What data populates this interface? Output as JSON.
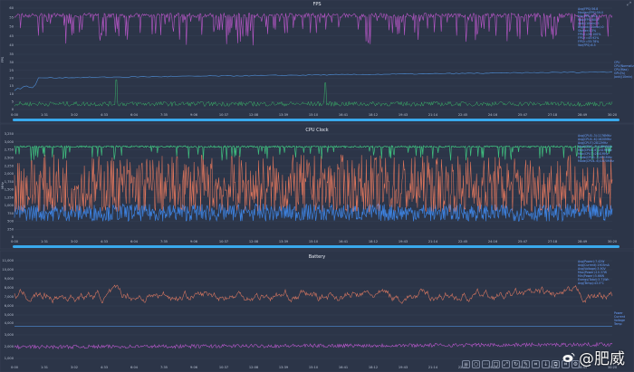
{
  "colors": {
    "background": "#2b3446",
    "scrollbar": "#39a9ec",
    "fps": "#b957c9",
    "cpu_load_green": "#3ab56a",
    "blue_line": "#4f8fd8",
    "cpu_green": "#3fbf7f",
    "cpu_orange": "#e0765c",
    "cpu_blue": "#3d82e0",
    "battery_orange": "#e07a62",
    "battery_purple": "#c45ad6",
    "legend_text": "#6aa2ff"
  },
  "time_ticks": [
    "0:00",
    "1:31",
    "3:02",
    "4:33",
    "6:04",
    "7:35",
    "9:06",
    "10:37",
    "12:08",
    "13:39",
    "15:10",
    "16:41",
    "18:12",
    "19:43",
    "21:14",
    "22:45",
    "24:16",
    "25:47",
    "27:18",
    "28:49",
    "30:20"
  ],
  "toolbar_icons": [
    "menu-icon",
    "circle-icon",
    "dots-icon",
    "square-icon",
    "expand-icon",
    "rotate-icon",
    "pencil-icon",
    "crop-icon",
    "download-icon",
    "copy-icon",
    "crop-icon",
    "settings-icon"
  ],
  "watermark": "@肥威",
  "chart_data": [
    {
      "type": "line",
      "title": "FPS",
      "ylabel": "FPS",
      "upper": {
        "yticks": [
          "60",
          "55",
          "50",
          "45",
          "40",
          "35"
        ],
        "ylim": [
          30,
          62
        ],
        "series": [
          {
            "color": "#b957c9",
            "values_description": "≈ 57 with frequent dips to 40–45"
          }
        ],
        "legend": [
          "Avg(FPS):56.8",
          "Median(FPS):59.0",
          "Min(FPS):33.0",
          "Max(FPS):60.0",
          "Jank(/10min):3",
          "BigJank(/10min):0",
          "Stutter:0.3%",
          "FPS>=30:100%",
          "FPS>=45:92%",
          "FPS>=55:78%",
          "Var(FPS):6.5"
        ]
      },
      "lower": {
        "yticks": [
          "30",
          "25",
          "20",
          "15",
          "10",
          "5",
          "0"
        ],
        "ylim": [
          0,
          30
        ],
        "series": [
          {
            "color": "#4f8fd8",
            "start": 13,
            "end": 24
          },
          {
            "color": "#3ab56a",
            "baseline": 3,
            "spikes": [
              [
                0.17,
                19
              ],
              [
                0.52,
                17
              ]
            ]
          }
        ],
        "legend": [
          "CPU",
          "CPU(Normalized)",
          "CPU(Max)",
          "GPU(%)",
          "Jank(/10min)"
        ]
      }
    },
    {
      "type": "line",
      "title": "CPU Clock",
      "ylabel": "MHz",
      "yticks": [
        "3,250",
        "3,000",
        "2,750",
        "2,500",
        "2,250",
        "2,000",
        "1,750",
        "1,500",
        "1,250",
        "1,000",
        "750",
        "500",
        "250",
        "0"
      ],
      "ylim": [
        0,
        3250
      ],
      "series": [
        {
          "color": "#3fbf7f",
          "typical": 2850,
          "range": [
            2400,
            2900
          ]
        },
        {
          "color": "#e0765c",
          "typical": 1400,
          "range": [
            800,
            2600
          ]
        },
        {
          "color": "#3d82e0",
          "typical": 700,
          "range": [
            500,
            1050
          ]
        }
      ],
      "legend": [
        "Avg(CPU0..3):1176MHz",
        "Avg(CPU4..6):1820MHz",
        "Avg(CPU7):2812MHz",
        "Max(CPU0..3):1804MHz",
        "Max(CPU4..6):2419MHz",
        "Max(CPU7):2841MHz",
        "Mode(CPU0..3):691MHz",
        "Mode(CPU4..6):1670MHz"
      ]
    },
    {
      "type": "line",
      "title": "Battery",
      "upper": {
        "yticks": [
          "11,000",
          "10,000",
          "9,000",
          "8,000",
          "7,000",
          "6,000",
          "5,000"
        ],
        "ylim": [
          5000,
          11500
        ],
        "series": [
          {
            "color": "#e07a62",
            "typical": 7300,
            "range": [
              6000,
              9900
            ]
          }
        ],
        "legend": [
          "Avg(Power):7.42W",
          "Avg(Current):1903mA",
          "Avg(Voltage):3.90V",
          "Max(Power):10.37W",
          "Min(Power):5.66W",
          "Energy(Total):3.71Wh",
          "Avg(Temp):43.5°C"
        ]
      },
      "lower": {
        "yticks": [
          "4,000",
          "3,000",
          "2,000",
          "1,000"
        ],
        "ylim": [
          800,
          4200
        ],
        "series": [
          {
            "color": "#c45ad6",
            "typical": 1900
          },
          {
            "color": "#4f8fd8",
            "typical": 3900
          }
        ],
        "legend": [
          "Power",
          "Current",
          "Voltage",
          "Temp"
        ]
      }
    }
  ]
}
